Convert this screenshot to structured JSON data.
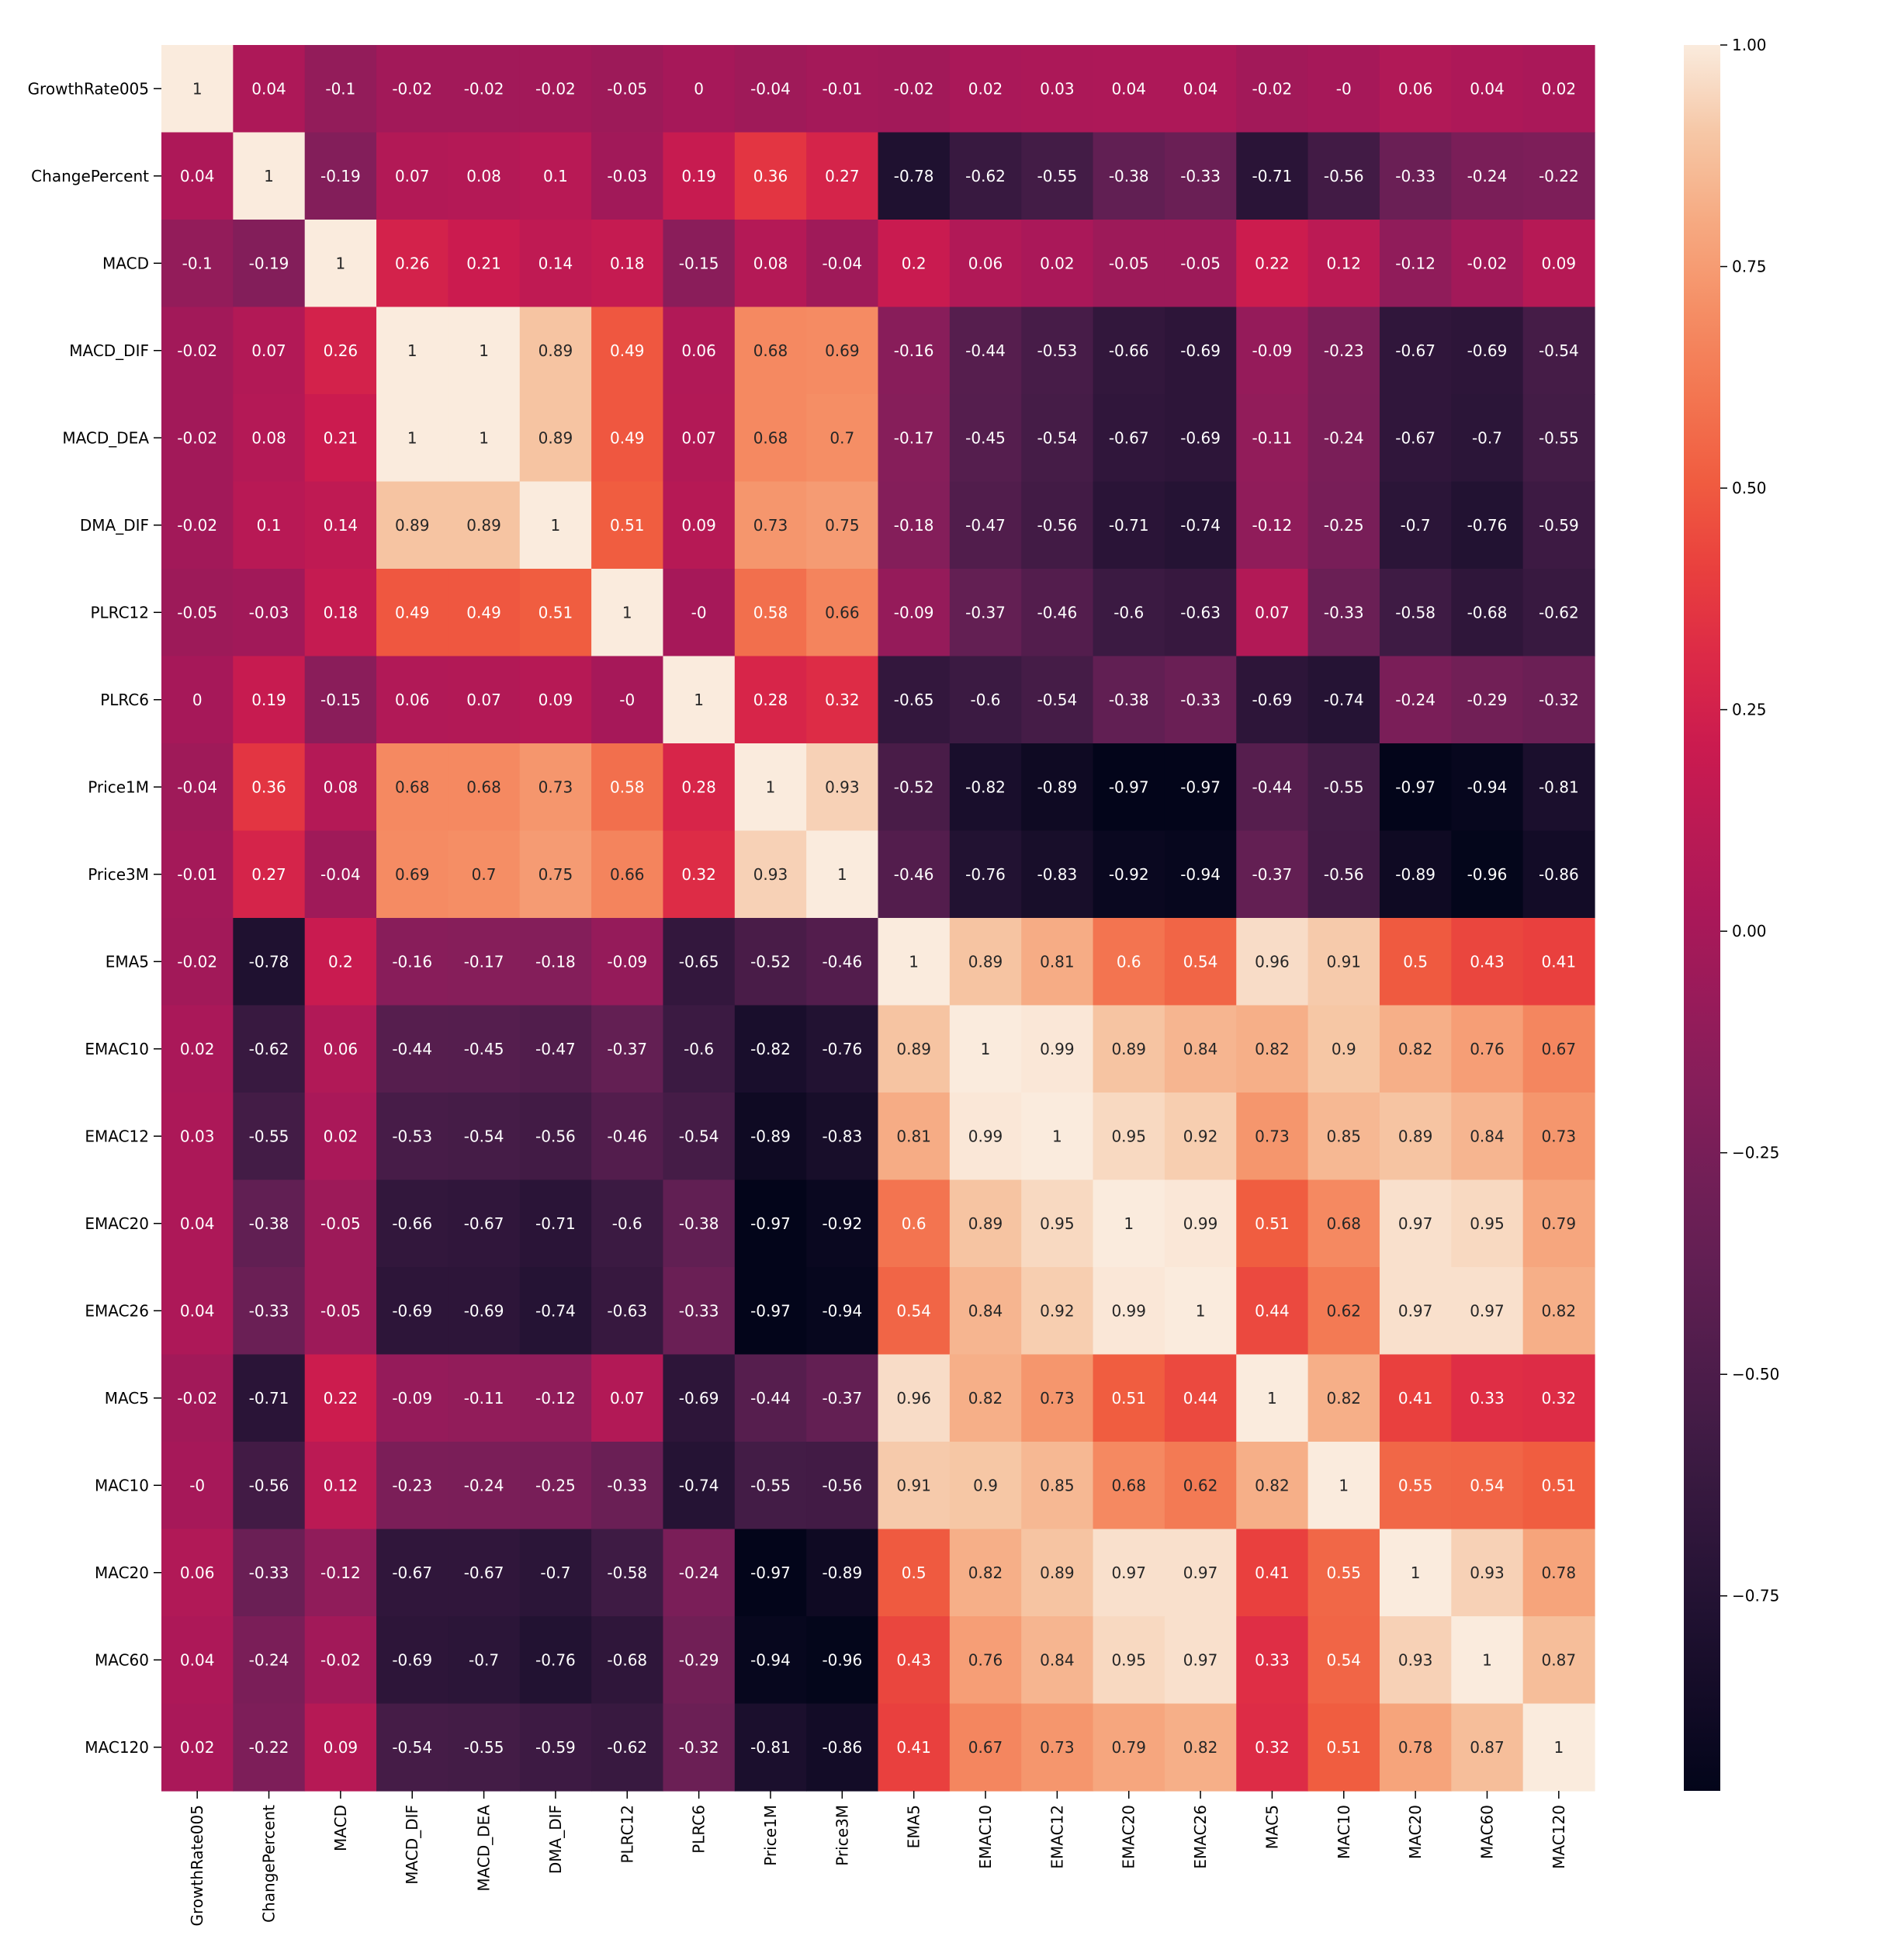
{
  "chart_data": {
    "type": "heatmap",
    "title": "",
    "xlabel": "",
    "ylabel": "",
    "labels": [
      "GrowthRate005",
      "ChangePercent",
      "MACD",
      "MACD_DIF",
      "MACD_DEA",
      "DMA_DIF",
      "PLRC12",
      "PLRC6",
      "Price1M",
      "Price3M",
      "EMA5",
      "EMAC10",
      "EMAC12",
      "EMAC20",
      "EMAC26",
      "MAC5",
      "MAC10",
      "MAC20",
      "MAC60",
      "MAC120"
    ],
    "matrix": [
      [
        "1",
        "0.04",
        "-0.1",
        "-0.02",
        "-0.02",
        "-0.02",
        "-0.05",
        "0",
        "-0.04",
        "-0.01",
        "-0.02",
        "0.02",
        "0.03",
        "0.04",
        "0.04",
        "-0.02",
        "-0",
        "0.06",
        "0.04",
        "0.02"
      ],
      [
        "0.04",
        "1",
        "-0.19",
        "0.07",
        "0.08",
        "0.1",
        "-0.03",
        "0.19",
        "0.36",
        "0.27",
        "-0.78",
        "-0.62",
        "-0.55",
        "-0.38",
        "-0.33",
        "-0.71",
        "-0.56",
        "-0.33",
        "-0.24",
        "-0.22"
      ],
      [
        "-0.1",
        "-0.19",
        "1",
        "0.26",
        "0.21",
        "0.14",
        "0.18",
        "-0.15",
        "0.08",
        "-0.04",
        "0.2",
        "0.06",
        "0.02",
        "-0.05",
        "-0.05",
        "0.22",
        "0.12",
        "-0.12",
        "-0.02",
        "0.09"
      ],
      [
        "-0.02",
        "0.07",
        "0.26",
        "1",
        "1",
        "0.89",
        "0.49",
        "0.06",
        "0.68",
        "0.69",
        "-0.16",
        "-0.44",
        "-0.53",
        "-0.66",
        "-0.69",
        "-0.09",
        "-0.23",
        "-0.67",
        "-0.69",
        "-0.54"
      ],
      [
        "-0.02",
        "0.08",
        "0.21",
        "1",
        "1",
        "0.89",
        "0.49",
        "0.07",
        "0.68",
        "0.7",
        "-0.17",
        "-0.45",
        "-0.54",
        "-0.67",
        "-0.69",
        "-0.11",
        "-0.24",
        "-0.67",
        "-0.7",
        "-0.55"
      ],
      [
        "-0.02",
        "0.1",
        "0.14",
        "0.89",
        "0.89",
        "1",
        "0.51",
        "0.09",
        "0.73",
        "0.75",
        "-0.18",
        "-0.47",
        "-0.56",
        "-0.71",
        "-0.74",
        "-0.12",
        "-0.25",
        "-0.7",
        "-0.76",
        "-0.59"
      ],
      [
        "-0.05",
        "-0.03",
        "0.18",
        "0.49",
        "0.49",
        "0.51",
        "1",
        "-0",
        "0.58",
        "0.66",
        "-0.09",
        "-0.37",
        "-0.46",
        "-0.6",
        "-0.63",
        "0.07",
        "-0.33",
        "-0.58",
        "-0.68",
        "-0.62"
      ],
      [
        "0",
        "0.19",
        "-0.15",
        "0.06",
        "0.07",
        "0.09",
        "-0",
        "1",
        "0.28",
        "0.32",
        "-0.65",
        "-0.6",
        "-0.54",
        "-0.38",
        "-0.33",
        "-0.69",
        "-0.74",
        "-0.24",
        "-0.29",
        "-0.32"
      ],
      [
        "-0.04",
        "0.36",
        "0.08",
        "0.68",
        "0.68",
        "0.73",
        "0.58",
        "0.28",
        "1",
        "0.93",
        "-0.52",
        "-0.82",
        "-0.89",
        "-0.97",
        "-0.97",
        "-0.44",
        "-0.55",
        "-0.97",
        "-0.94",
        "-0.81"
      ],
      [
        "-0.01",
        "0.27",
        "-0.04",
        "0.69",
        "0.7",
        "0.75",
        "0.66",
        "0.32",
        "0.93",
        "1",
        "-0.46",
        "-0.76",
        "-0.83",
        "-0.92",
        "-0.94",
        "-0.37",
        "-0.56",
        "-0.89",
        "-0.96",
        "-0.86"
      ],
      [
        "-0.02",
        "-0.78",
        "0.2",
        "-0.16",
        "-0.17",
        "-0.18",
        "-0.09",
        "-0.65",
        "-0.52",
        "-0.46",
        "1",
        "0.89",
        "0.81",
        "0.6",
        "0.54",
        "0.96",
        "0.91",
        "0.5",
        "0.43",
        "0.41"
      ],
      [
        "0.02",
        "-0.62",
        "0.06",
        "-0.44",
        "-0.45",
        "-0.47",
        "-0.37",
        "-0.6",
        "-0.82",
        "-0.76",
        "0.89",
        "1",
        "0.99",
        "0.89",
        "0.84",
        "0.82",
        "0.9",
        "0.82",
        "0.76",
        "0.67"
      ],
      [
        "0.03",
        "-0.55",
        "0.02",
        "-0.53",
        "-0.54",
        "-0.56",
        "-0.46",
        "-0.54",
        "-0.89",
        "-0.83",
        "0.81",
        "0.99",
        "1",
        "0.95",
        "0.92",
        "0.73",
        "0.85",
        "0.89",
        "0.84",
        "0.73"
      ],
      [
        "0.04",
        "-0.38",
        "-0.05",
        "-0.66",
        "-0.67",
        "-0.71",
        "-0.6",
        "-0.38",
        "-0.97",
        "-0.92",
        "0.6",
        "0.89",
        "0.95",
        "1",
        "0.99",
        "0.51",
        "0.68",
        "0.97",
        "0.95",
        "0.79"
      ],
      [
        "0.04",
        "-0.33",
        "-0.05",
        "-0.69",
        "-0.69",
        "-0.74",
        "-0.63",
        "-0.33",
        "-0.97",
        "-0.94",
        "0.54",
        "0.84",
        "0.92",
        "0.99",
        "1",
        "0.44",
        "0.62",
        "0.97",
        "0.97",
        "0.82"
      ],
      [
        "-0.02",
        "-0.71",
        "0.22",
        "-0.09",
        "-0.11",
        "-0.12",
        "0.07",
        "-0.69",
        "-0.44",
        "-0.37",
        "0.96",
        "0.82",
        "0.73",
        "0.51",
        "0.44",
        "1",
        "0.82",
        "0.41",
        "0.33",
        "0.32"
      ],
      [
        "-0",
        "-0.56",
        "0.12",
        "-0.23",
        "-0.24",
        "-0.25",
        "-0.33",
        "-0.74",
        "-0.55",
        "-0.56",
        "0.91",
        "0.9",
        "0.85",
        "0.68",
        "0.62",
        "0.82",
        "1",
        "0.55",
        "0.54",
        "0.51"
      ],
      [
        "0.06",
        "-0.33",
        "-0.12",
        "-0.67",
        "-0.67",
        "-0.7",
        "-0.58",
        "-0.24",
        "-0.97",
        "-0.89",
        "0.5",
        "0.82",
        "0.89",
        "0.97",
        "0.97",
        "0.41",
        "0.55",
        "1",
        "0.93",
        "0.78"
      ],
      [
        "0.04",
        "-0.24",
        "-0.02",
        "-0.69",
        "-0.7",
        "-0.76",
        "-0.68",
        "-0.29",
        "-0.94",
        "-0.96",
        "0.43",
        "0.76",
        "0.84",
        "0.95",
        "0.97",
        "0.33",
        "0.54",
        "0.93",
        "1",
        "0.87"
      ],
      [
        "0.02",
        "-0.22",
        "0.09",
        "-0.54",
        "-0.55",
        "-0.59",
        "-0.62",
        "-0.32",
        "-0.81",
        "-0.86",
        "0.41",
        "0.67",
        "0.73",
        "0.79",
        "0.82",
        "0.32",
        "0.51",
        "0.78",
        "0.87",
        "1"
      ]
    ],
    "colorbar": {
      "min": -0.97,
      "max": 1.0,
      "ticks": [
        "1.00",
        "0.75",
        "0.50",
        "0.25",
        "0.00",
        "−0.25",
        "−0.50",
        "−0.75"
      ],
      "tick_values": [
        1.0,
        0.75,
        0.5,
        0.25,
        0.0,
        -0.25,
        -0.5,
        -0.75
      ],
      "colormap": "rocket"
    }
  }
}
